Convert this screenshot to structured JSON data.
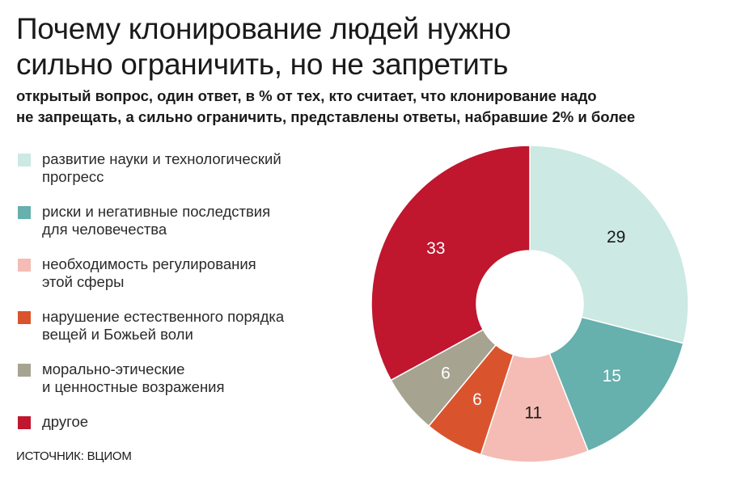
{
  "title_lines": [
    "Почему клонирование людей нужно",
    "сильно ограничить, но не запретить"
  ],
  "subtitle_lines": [
    "открытый вопрос, один ответ, в % от тех, кто считает, что клонирование надо",
    "не запрещать, а сильно ограничить, представлены ответы, набравшие 2% и более"
  ],
  "source": "ИСТОЧНИК: ВЦИОМ",
  "chart_data": {
    "type": "pie",
    "donut": true,
    "start_angle_deg": 0,
    "direction": "clockwise",
    "legend_position": "left",
    "labels": [
      "развитие науки и технологический прогресс",
      "риски и негативные последствия для человечества",
      "необходимость регулирования этой сферы",
      "нарушение естественного порядка вещей и Божьей воли",
      "морально-этические и ценностные возражения",
      "другое"
    ],
    "legend_lines": [
      [
        "развитие науки и технологический",
        "прогресс"
      ],
      [
        "риски и негативные последствия",
        "для человечества"
      ],
      [
        "необходимость регулирования",
        "этой сферы"
      ],
      [
        "нарушение естественного порядка",
        "вещей и Божьей воли"
      ],
      [
        "морально-этические",
        "и ценностные возражения"
      ],
      [
        "другое"
      ]
    ],
    "values": [
      29,
      15,
      11,
      6,
      6,
      33
    ],
    "colors": [
      "#cce9e3",
      "#66b0ad",
      "#f4bcb4",
      "#d9542d",
      "#a6a491",
      "#c0162e"
    ],
    "label_colors": [
      "#1a1a1a",
      "#ffffff",
      "#1a1a1a",
      "#ffffff",
      "#ffffff",
      "#ffffff"
    ]
  }
}
